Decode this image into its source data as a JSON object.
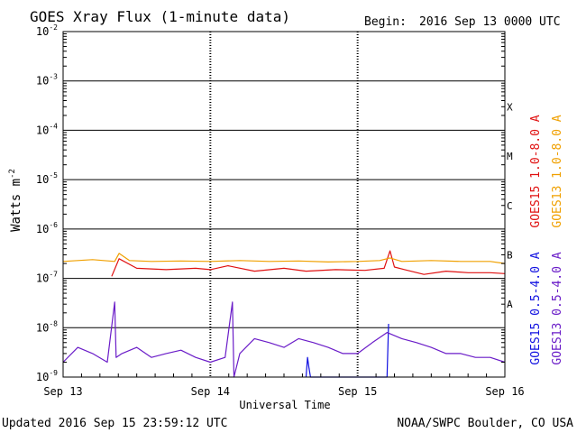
{
  "header": {
    "title": "GOES Xray Flux (1-minute data)",
    "begin_label": "Begin:",
    "begin_value": "2016 Sep 13 0000 UTC"
  },
  "footer": {
    "updated": "Updated 2016 Sep 15 23:59:12 UTC",
    "credit": "NOAA/SWPC Boulder, CO USA"
  },
  "chart_data": {
    "type": "line",
    "title": "GOES Xray Flux (1-minute data)",
    "xlabel": "Universal Time",
    "ylabel_main": "Watts m",
    "ylabel_exp": "-2",
    "y_scale": "log",
    "ylim": [
      1e-09,
      0.01
    ],
    "xlim_days": [
      0,
      3
    ],
    "x_ticks": [
      "Sep 13",
      "Sep 14",
      "Sep 15",
      "Sep 16"
    ],
    "y_ticks": [
      {
        "exp": "-9",
        "value": 1e-09
      },
      {
        "exp": "-8",
        "value": 1e-08
      },
      {
        "exp": "-7",
        "value": 1e-07
      },
      {
        "exp": "-6",
        "value": 1e-06
      },
      {
        "exp": "-5",
        "value": 1e-05
      },
      {
        "exp": "-4",
        "value": 0.0001
      },
      {
        "exp": "-3",
        "value": 0.001
      },
      {
        "exp": "-2",
        "value": 0.01
      }
    ],
    "flare_classes": [
      {
        "label": "A",
        "value": 3e-08
      },
      {
        "label": "B",
        "value": 3e-07
      },
      {
        "label": "C",
        "value": 3e-06
      },
      {
        "label": "M",
        "value": 3e-05
      },
      {
        "label": "X",
        "value": 0.0003
      }
    ],
    "grid": true,
    "legend_position": "right",
    "series": [
      {
        "name": "GOES15 1.0-8.0 A",
        "color": "#e01010",
        "x": [
          0.33,
          0.38,
          0.5,
          0.7,
          0.9,
          1.0,
          1.12,
          1.3,
          1.5,
          1.65,
          1.85,
          2.05,
          2.18,
          2.22,
          2.25,
          2.32,
          2.45,
          2.6,
          2.75,
          2.9,
          3.0
        ],
        "values": [
          1.1e-07,
          2.5e-07,
          1.6e-07,
          1.5e-07,
          1.6e-07,
          1.5e-07,
          1.8e-07,
          1.4e-07,
          1.6e-07,
          1.4e-07,
          1.5e-07,
          1.45e-07,
          1.6e-07,
          3.6e-07,
          1.7e-07,
          1.5e-07,
          1.2e-07,
          1.4e-07,
          1.3e-07,
          1.3e-07,
          1.25e-07
        ]
      },
      {
        "name": "GOES13 1.0-8.0 A",
        "color": "#f0a000",
        "x": [
          0.0,
          0.2,
          0.35,
          0.38,
          0.45,
          0.6,
          0.8,
          1.0,
          1.2,
          1.4,
          1.6,
          1.8,
          2.0,
          2.15,
          2.22,
          2.3,
          2.5,
          2.7,
          2.9,
          3.0
        ],
        "values": [
          2.2e-07,
          2.4e-07,
          2.2e-07,
          3.2e-07,
          2.3e-07,
          2.2e-07,
          2.25e-07,
          2.2e-07,
          2.3e-07,
          2.2e-07,
          2.25e-07,
          2.15e-07,
          2.2e-07,
          2.3e-07,
          2.6e-07,
          2.2e-07,
          2.3e-07,
          2.2e-07,
          2.2e-07,
          2e-07
        ]
      },
      {
        "name": "GOES15 0.5-4.0 A",
        "color": "#1010e0",
        "x": [
          1.65,
          1.66,
          1.67,
          1.68,
          2.2,
          2.21
        ],
        "values": [
          1e-09,
          2.5e-09,
          1.5e-09,
          1e-09,
          1e-09,
          1.2e-08
        ]
      },
      {
        "name": "GOES13 0.5-4.0 A",
        "color": "#6a1cc8",
        "x": [
          0.0,
          0.1,
          0.2,
          0.3,
          0.35,
          0.36,
          0.4,
          0.5,
          0.6,
          0.7,
          0.8,
          0.9,
          1.0,
          1.1,
          1.15,
          1.16,
          1.2,
          1.3,
          1.4,
          1.5,
          1.6,
          1.7,
          1.8,
          1.9,
          2.0,
          2.1,
          2.2,
          2.3,
          2.4,
          2.5,
          2.6,
          2.7,
          2.8,
          2.9,
          3.0
        ],
        "values": [
          2e-09,
          4e-09,
          3e-09,
          2e-09,
          3.3e-08,
          2.5e-09,
          3e-09,
          4e-09,
          2.5e-09,
          3e-09,
          3.5e-09,
          2.5e-09,
          2e-09,
          2.5e-09,
          3.3e-08,
          1e-09,
          3e-09,
          6e-09,
          5e-09,
          4e-09,
          6e-09,
          5e-09,
          4e-09,
          3e-09,
          3e-09,
          5e-09,
          8e-09,
          6e-09,
          5e-09,
          4e-09,
          3e-09,
          3e-09,
          2.5e-09,
          2.5e-09,
          2e-09
        ]
      }
    ]
  }
}
